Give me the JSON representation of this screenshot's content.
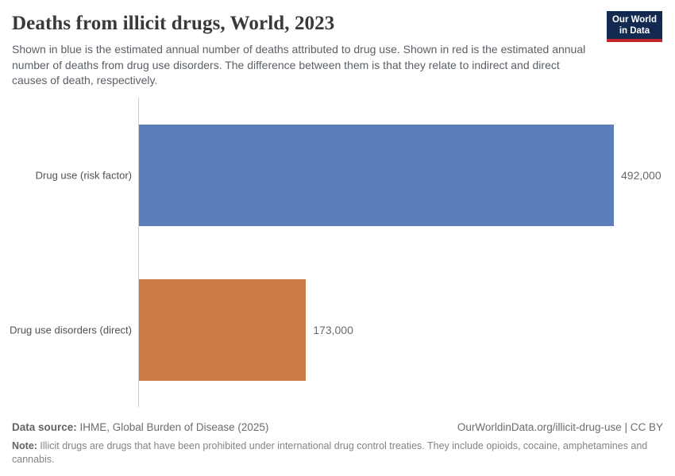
{
  "logo": {
    "line1": "Our World",
    "line2": "in Data",
    "bg_color": "#132a50",
    "accent_color": "#c3272e"
  },
  "header": {
    "title": "Deaths from illicit drugs, World, 2023",
    "subtitle": "Shown in blue is the estimated annual number of deaths attributed to drug use. Shown in red is the estimated annual number of deaths from drug use disorders. The difference between them is that they relate to indirect and direct causes of death, respectively."
  },
  "chart_data": {
    "type": "bar",
    "orientation": "horizontal",
    "title": "Deaths from illicit drugs, World, 2023",
    "categories": [
      "Drug use (risk factor)",
      "Drug use disorders (direct)"
    ],
    "values": [
      492000,
      173000
    ],
    "value_labels": [
      "492,000",
      "173,000"
    ],
    "colors": [
      "#5b7eb8",
      "#cb7b46"
    ],
    "xlabel": "",
    "ylabel": "",
    "xlim": [
      0,
      492000
    ],
    "grid": false,
    "legend": "none"
  },
  "footer": {
    "data_source_label": "Data source:",
    "data_source_text": " IHME, Global Burden of Disease (2025)",
    "attribution": "OurWorldinData.org/illicit-drug-use | CC BY",
    "note_label": "Note:",
    "note_text": " Illicit drugs are drugs that have been prohibited under international drug control treaties. They include opioids, cocaine, amphetamines and cannabis."
  }
}
